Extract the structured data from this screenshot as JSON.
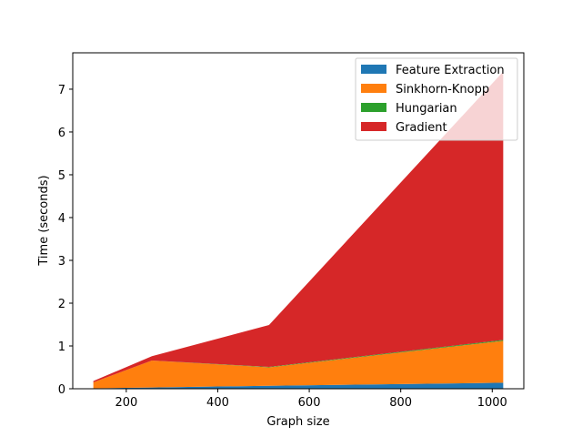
{
  "chart_data": {
    "type": "area",
    "stacked": true,
    "title": "",
    "xlabel": "Graph size",
    "ylabel": "Time (seconds)",
    "x": [
      128,
      256,
      512,
      1024
    ],
    "xlim": [
      83,
      1069
    ],
    "ylim": [
      0,
      7.85
    ],
    "xticks": [
      200,
      400,
      600,
      800,
      1000
    ],
    "yticks": [
      0,
      1,
      2,
      3,
      4,
      5,
      6,
      7
    ],
    "legend_position": "top-right",
    "grid": false,
    "series": [
      {
        "name": "Feature Extraction",
        "color": "#1f77b4",
        "values": [
          0.01,
          0.03,
          0.07,
          0.14
        ]
      },
      {
        "name": "Sinkhorn-Knopp",
        "color": "#ff7f0e",
        "values": [
          0.14,
          0.63,
          0.43,
          0.98
        ]
      },
      {
        "name": "Hungarian",
        "color": "#2ca02c",
        "values": [
          0.0,
          0.0,
          0.01,
          0.02
        ]
      },
      {
        "name": "Gradient",
        "color": "#d62728",
        "values": [
          0.03,
          0.1,
          0.98,
          6.27
        ]
      }
    ]
  }
}
